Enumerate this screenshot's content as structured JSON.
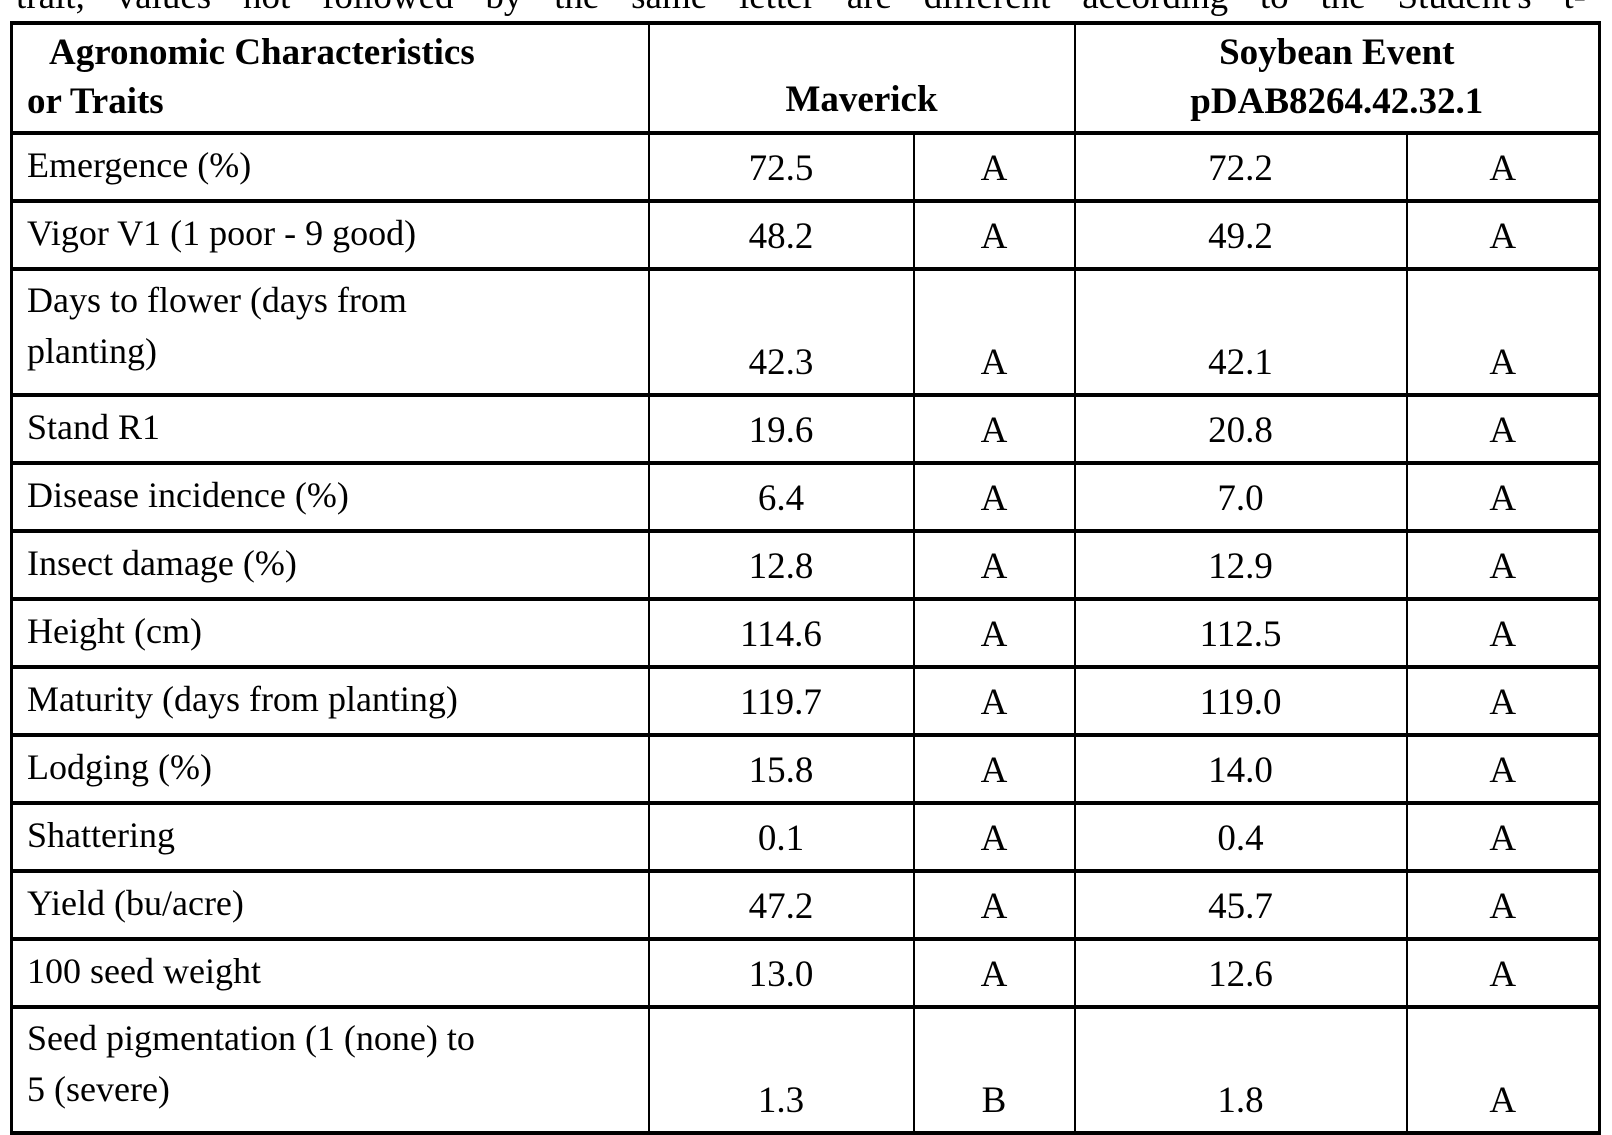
{
  "document": {
    "clipped_text_top": "trait, values not followed by the same letter are different according to the Student's t-"
  },
  "table": {
    "header": {
      "traits": "Agronomic Characteristics\nor Traits",
      "maverick": "Maverick",
      "soybean_event": "Soybean Event\npDAB8264.42.32.1"
    },
    "rows": [
      {
        "trait": "Emergence (%)",
        "maverick_value": "72.5",
        "maverick_letter": "A",
        "event_value": "72.2",
        "event_letter": "A"
      },
      {
        "trait": "Vigor V1 (1 poor - 9 good)",
        "maverick_value": "48.2",
        "maverick_letter": "A",
        "event_value": "49.2",
        "event_letter": "A"
      },
      {
        "trait": "Days to flower (days from\nplanting)",
        "maverick_value": "42.3",
        "maverick_letter": "A",
        "event_value": "42.1",
        "event_letter": "A"
      },
      {
        "trait": "Stand R1",
        "maverick_value": "19.6",
        "maverick_letter": "A",
        "event_value": "20.8",
        "event_letter": "A"
      },
      {
        "trait": "Disease incidence (%)",
        "maverick_value": "6.4",
        "maverick_letter": "A",
        "event_value": "7.0",
        "event_letter": "A"
      },
      {
        "trait": "Insect damage (%)",
        "maverick_value": "12.8",
        "maverick_letter": "A",
        "event_value": "12.9",
        "event_letter": "A"
      },
      {
        "trait": "Height (cm)",
        "maverick_value": "114.6",
        "maverick_letter": "A",
        "event_value": "112.5",
        "event_letter": "A"
      },
      {
        "trait": "Maturity (days from planting)",
        "maverick_value": "119.7",
        "maverick_letter": "A",
        "event_value": "119.0",
        "event_letter": "A"
      },
      {
        "trait": "Lodging (%)",
        "maverick_value": "15.8",
        "maverick_letter": "A",
        "event_value": "14.0",
        "event_letter": "A"
      },
      {
        "trait": "Shattering",
        "maverick_value": "0.1",
        "maverick_letter": "A",
        "event_value": "0.4",
        "event_letter": "A"
      },
      {
        "trait": "Yield (bu/acre)",
        "maverick_value": "47.2",
        "maverick_letter": "A",
        "event_value": "45.7",
        "event_letter": "A"
      },
      {
        "trait": "100 seed weight",
        "maverick_value": "13.0",
        "maverick_letter": "A",
        "event_value": "12.6",
        "event_letter": "A"
      },
      {
        "trait": "Seed pigmentation (1 (none) to\n5 (severe)",
        "maverick_value": "1.3",
        "maverick_letter": "B",
        "event_value": "1.8",
        "event_letter": "A"
      }
    ]
  }
}
